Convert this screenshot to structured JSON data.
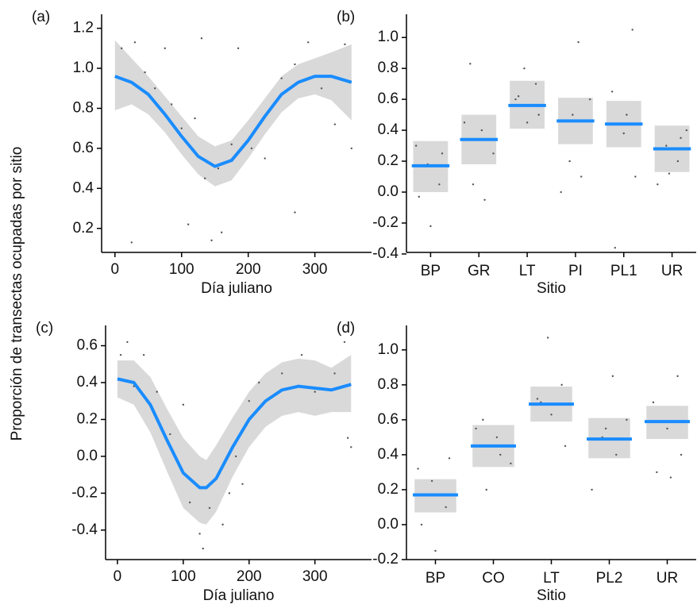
{
  "ylabel": "Proporción de transectas ocupadas por sitio",
  "chart_data": [
    {
      "type": "line",
      "label": "(a)",
      "xlabel": "Día juliano",
      "x": [
        0,
        25,
        50,
        75,
        100,
        125,
        150,
        175,
        200,
        225,
        250,
        275,
        300,
        325,
        355
      ],
      "series": [
        {
          "color": "#1a8cff",
          "band_color": "#d9d9d9",
          "values": [
            0.96,
            0.93,
            0.87,
            0.77,
            0.66,
            0.56,
            0.51,
            0.54,
            0.64,
            0.76,
            0.87,
            0.93,
            0.96,
            0.96,
            0.93
          ],
          "lower": [
            0.79,
            0.82,
            0.77,
            0.68,
            0.57,
            0.47,
            0.41,
            0.44,
            0.55,
            0.67,
            0.78,
            0.85,
            0.87,
            0.84,
            0.74
          ],
          "upper": [
            1.14,
            1.05,
            0.96,
            0.86,
            0.76,
            0.66,
            0.61,
            0.64,
            0.74,
            0.85,
            0.96,
            1.02,
            1.05,
            1.08,
            1.12
          ]
        }
      ],
      "points": {
        "color": "#555555",
        "x": [
          10,
          30,
          45,
          60,
          75,
          85,
          100,
          110,
          120,
          135,
          145,
          155,
          160,
          175,
          185,
          205,
          225,
          250,
          270,
          290,
          310,
          330,
          345,
          355,
          25,
          130,
          270
        ],
        "y": [
          1.1,
          1.13,
          0.98,
          0.9,
          1.1,
          0.82,
          0.7,
          0.22,
          0.75,
          0.45,
          0.14,
          0.5,
          0.18,
          0.62,
          1.1,
          0.6,
          0.55,
          0.95,
          1.02,
          1.13,
          0.9,
          0.72,
          1.12,
          0.6,
          0.13,
          1.15,
          0.28
        ]
      },
      "xlim": [
        -20,
        385
      ],
      "ylim": [
        0.08,
        1.27
      ],
      "xticks": [
        0,
        100,
        200,
        300
      ],
      "yticks": [
        0.2,
        0.4,
        0.6,
        0.8,
        {
          "value": 1,
          "label": "1.0"
        },
        1.2
      ]
    },
    {
      "type": "crossbar",
      "label": "(b)",
      "xlabel": "Sitio",
      "categories": [
        "BP",
        "GR",
        "LT",
        "PI",
        "PL1",
        "UR"
      ],
      "series": [
        {
          "color": "#1a8cff",
          "band_color": "#d9d9d9",
          "values": [
            0.17,
            0.34,
            0.56,
            0.46,
            0.44,
            0.28
          ],
          "lower": [
            0.0,
            0.18,
            0.41,
            0.31,
            0.29,
            0.13
          ],
          "upper": [
            0.33,
            0.5,
            0.72,
            0.61,
            0.59,
            0.43
          ]
        }
      ],
      "points": {
        "color": "#555555",
        "x": [
          "BP",
          "BP",
          "BP",
          "BP",
          "BP",
          "BP",
          "GR",
          "GR",
          "GR",
          "GR",
          "GR",
          "GR",
          "LT",
          "LT",
          "LT",
          "LT",
          "LT",
          "LT",
          "PI",
          "PI",
          "PI",
          "PI",
          "PI",
          "PI",
          "PL1",
          "PL1",
          "PL1",
          "PL1",
          "PL1",
          "PL1",
          "UR",
          "UR",
          "UR",
          "UR",
          "UR",
          "UR"
        ],
        "y": [
          0.3,
          0.18,
          0.05,
          -0.03,
          -0.22,
          0.25,
          0.83,
          0.4,
          0.25,
          0.05,
          -0.05,
          0.45,
          0.8,
          0.7,
          0.6,
          0.45,
          0.5,
          0.62,
          0.97,
          0.6,
          0.2,
          0.1,
          0,
          0.5,
          1.05,
          0.65,
          0.38,
          0.1,
          -0.36,
          0.5,
          0.4,
          0.3,
          0.2,
          0.05,
          0.12,
          0.35
        ]
      },
      "ylim": [
        -0.39,
        1.15
      ],
      "yticks": [
        -0.4,
        -0.2,
        {
          "value": 0,
          "label": "0.0"
        },
        0.2,
        0.4,
        0.6,
        0.8,
        {
          "value": 1,
          "label": "1.0"
        }
      ]
    },
    {
      "type": "line",
      "label": "(c)",
      "xlabel": "Día juliano",
      "x": [
        0,
        25,
        50,
        75,
        100,
        125,
        135,
        150,
        175,
        200,
        225,
        250,
        275,
        300,
        325,
        355
      ],
      "series": [
        {
          "color": "#1a8cff",
          "band_color": "#d9d9d9",
          "values": [
            0.42,
            0.4,
            0.28,
            0.09,
            -0.09,
            -0.17,
            -0.17,
            -0.12,
            0.05,
            0.2,
            0.3,
            0.36,
            0.38,
            0.37,
            0.36,
            0.39
          ],
          "lower": [
            0.32,
            0.28,
            0.13,
            -0.08,
            -0.28,
            -0.36,
            -0.37,
            -0.3,
            -0.11,
            0.05,
            0.16,
            0.22,
            0.24,
            0.22,
            0.24,
            0.24
          ],
          "upper": [
            0.52,
            0.52,
            0.43,
            0.26,
            0.1,
            0.0,
            -0.02,
            0.06,
            0.21,
            0.35,
            0.45,
            0.51,
            0.53,
            0.52,
            0.48,
            0.55
          ]
        }
      ],
      "points": {
        "color": "#555555",
        "x": [
          5,
          15,
          25,
          40,
          60,
          80,
          95,
          110,
          125,
          130,
          140,
          160,
          170,
          180,
          200,
          215,
          250,
          280,
          300,
          330,
          345,
          350,
          355,
          100,
          190
        ],
        "y": [
          0.55,
          0.62,
          0.38,
          0.55,
          0.35,
          0.12,
          -0.05,
          -0.25,
          -0.42,
          -0.5,
          -0.28,
          -0.37,
          -0.2,
          0.0,
          0.3,
          0.4,
          0.45,
          0.55,
          0.35,
          0.45,
          0.62,
          0.1,
          0.05,
          0.28,
          -0.15
        ]
      },
      "xlim": [
        -18,
        386
      ],
      "ylim": [
        -0.56,
        0.71
      ],
      "xticks": [
        0,
        100,
        200,
        300
      ],
      "yticks": [
        -0.4,
        -0.2,
        {
          "value": 0,
          "label": "0.0"
        },
        0.2,
        0.4,
        0.6
      ]
    },
    {
      "type": "crossbar",
      "label": "(d)",
      "xlabel": "Sitio",
      "categories": [
        "BP",
        "CO",
        "LT",
        "PL2",
        "UR"
      ],
      "series": [
        {
          "color": "#1a8cff",
          "band_color": "#d9d9d9",
          "values": [
            0.17,
            0.45,
            0.69,
            0.49,
            0.59
          ],
          "lower": [
            0.07,
            0.33,
            0.59,
            0.38,
            0.49
          ],
          "upper": [
            0.26,
            0.57,
            0.79,
            0.61,
            0.68
          ]
        }
      ],
      "points": {
        "color": "#555555",
        "x": [
          "BP",
          "BP",
          "BP",
          "BP",
          "BP",
          "BP",
          "CO",
          "CO",
          "CO",
          "CO",
          "CO",
          "CO",
          "LT",
          "LT",
          "LT",
          "LT",
          "LT",
          "LT",
          "PL2",
          "PL2",
          "PL2",
          "PL2",
          "PL2",
          "PL2",
          "UR",
          "UR",
          "UR",
          "UR",
          "UR",
          "UR"
        ],
        "y": [
          0.32,
          0.25,
          0.1,
          0.0,
          -0.15,
          0.38,
          0.6,
          0.5,
          0.35,
          0.2,
          0.4,
          0.55,
          1.07,
          0.8,
          0.72,
          0.63,
          0.45,
          0.7,
          0.85,
          0.6,
          0.5,
          0.4,
          0.2,
          0.55,
          0.85,
          0.7,
          0.55,
          0.4,
          0.3,
          0.27
        ]
      },
      "ylim": [
        -0.2,
        1.14
      ],
      "yticks": [
        -0.2,
        {
          "value": 0,
          "label": "0.0"
        },
        0.2,
        0.4,
        0.6,
        0.8,
        {
          "value": 1,
          "label": "1.0"
        }
      ]
    }
  ]
}
